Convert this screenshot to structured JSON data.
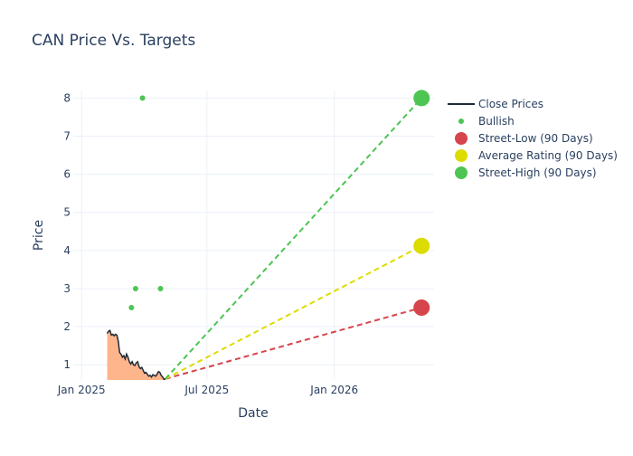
{
  "chart_data": {
    "type": "line",
    "title": "CAN Price Vs. Targets",
    "xlabel": "Date",
    "ylabel": "Price",
    "x_range": [
      "2024-12-20",
      "2026-05-25"
    ],
    "y_range": [
      0.6,
      8.2
    ],
    "x_ticks": [
      {
        "date": "2025-01-01",
        "label": "Jan 2025"
      },
      {
        "date": "2025-07-01",
        "label": "Jul 2025"
      },
      {
        "date": "2026-01-01",
        "label": "Jan 2026"
      }
    ],
    "y_ticks": [
      1,
      2,
      3,
      4,
      5,
      6,
      7,
      8
    ],
    "grid": true,
    "legend_position": "top-right",
    "legend": [
      {
        "label": "Close Prices",
        "kind": "line",
        "color": "#1f2a36"
      },
      {
        "label": "Bullish",
        "kind": "dot",
        "color": "#4cc552"
      },
      {
        "label": "Street-Low (90 Days)",
        "kind": "marker",
        "color": "#d6454b"
      },
      {
        "label": "Average Rating (90 Days)",
        "kind": "marker",
        "color": "#dcdc00"
      },
      {
        "label": "Street-High (90 Days)",
        "kind": "marker",
        "color": "#4cc552"
      }
    ],
    "series": [
      {
        "name": "Close Prices",
        "color": "#1f2a36",
        "fill": "#ffb58c",
        "points": [
          [
            "2025-02-07",
            1.82
          ],
          [
            "2025-02-09",
            1.88
          ],
          [
            "2025-02-11",
            1.9
          ],
          [
            "2025-02-13",
            1.78
          ],
          [
            "2025-02-15",
            1.8
          ],
          [
            "2025-02-17",
            1.76
          ],
          [
            "2025-02-19",
            1.8
          ],
          [
            "2025-02-21",
            1.78
          ],
          [
            "2025-02-23",
            1.62
          ],
          [
            "2025-02-25",
            1.32
          ],
          [
            "2025-02-27",
            1.28
          ],
          [
            "2025-03-01",
            1.2
          ],
          [
            "2025-03-03",
            1.24
          ],
          [
            "2025-03-05",
            1.15
          ],
          [
            "2025-03-07",
            1.28
          ],
          [
            "2025-03-09",
            1.2
          ],
          [
            "2025-03-11",
            1.08
          ],
          [
            "2025-03-13",
            1.02
          ],
          [
            "2025-03-15",
            1.08
          ],
          [
            "2025-03-17",
            1.0
          ],
          [
            "2025-03-19",
            0.98
          ],
          [
            "2025-03-21",
            1.05
          ],
          [
            "2025-03-23",
            1.08
          ],
          [
            "2025-03-25",
            0.95
          ],
          [
            "2025-03-27",
            0.9
          ],
          [
            "2025-03-29",
            0.93
          ],
          [
            "2025-03-31",
            0.85
          ],
          [
            "2025-04-02",
            0.78
          ],
          [
            "2025-04-04",
            0.8
          ],
          [
            "2025-04-06",
            0.75
          ],
          [
            "2025-04-08",
            0.7
          ],
          [
            "2025-04-10",
            0.72
          ],
          [
            "2025-04-12",
            0.68
          ],
          [
            "2025-04-14",
            0.74
          ],
          [
            "2025-04-16",
            0.72
          ],
          [
            "2025-04-18",
            0.7
          ],
          [
            "2025-04-20",
            0.75
          ],
          [
            "2025-04-22",
            0.82
          ],
          [
            "2025-04-24",
            0.8
          ],
          [
            "2025-04-26",
            0.72
          ],
          [
            "2025-04-28",
            0.68
          ],
          [
            "2025-04-30",
            0.62
          ],
          [
            "2025-05-02",
            0.63
          ]
        ]
      },
      {
        "name": "Bullish",
        "color": "#4cc552",
        "points": [
          [
            "2025-03-14",
            2.5
          ],
          [
            "2025-03-20",
            3.0
          ],
          [
            "2025-03-30",
            8.0
          ],
          [
            "2025-04-25",
            3.0
          ]
        ]
      },
      {
        "name": "Street-Low (90 Days)",
        "color": "#d6454b",
        "start": [
          "2025-05-02",
          0.63
        ],
        "target": [
          "2026-05-07",
          2.5
        ]
      },
      {
        "name": "Average Rating (90 Days)",
        "color": "#dcdc00",
        "start": [
          "2025-05-02",
          0.63
        ],
        "target": [
          "2026-05-07",
          4.12
        ]
      },
      {
        "name": "Street-High (90 Days)",
        "color": "#4cc552",
        "start": [
          "2025-05-02",
          0.63
        ],
        "target": [
          "2026-05-07",
          8.0
        ]
      }
    ]
  }
}
